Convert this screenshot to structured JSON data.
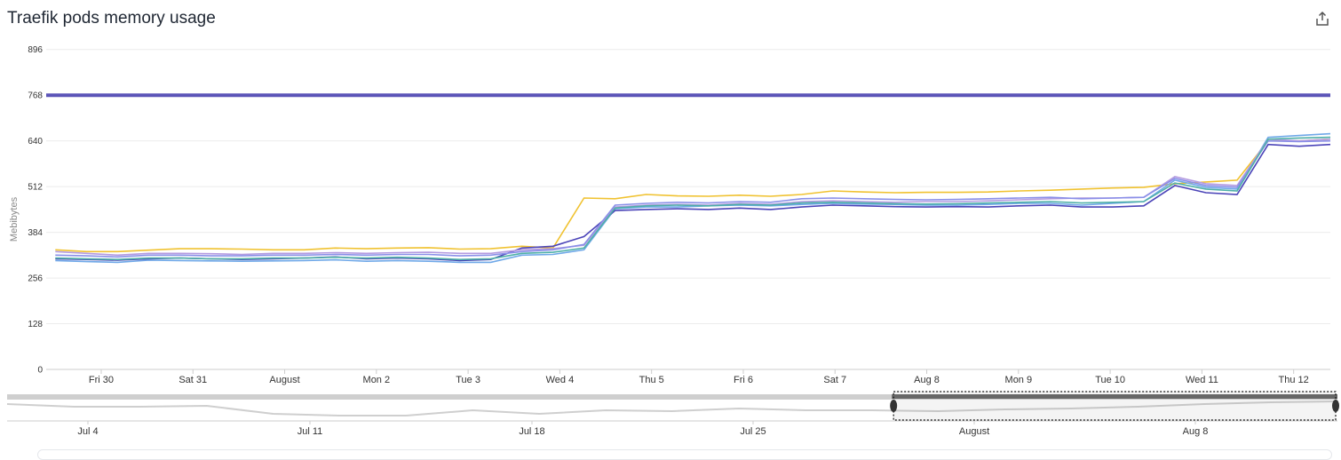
{
  "title": "Traefik pods memory usage",
  "export_icon": "share-export-icon",
  "chart_data": {
    "type": "line",
    "title": "Traefik pods memory usage",
    "ylabel": "Mebibytes",
    "ylim": [
      0,
      960
    ],
    "y_ticks": [
      0,
      128,
      256,
      384,
      512,
      640,
      768,
      896
    ],
    "x_ticks": [
      "Fri 30",
      "Sat 31",
      "August",
      "Mon 2",
      "Tue 3",
      "Wed 4",
      "Thu 5",
      "Fri 6",
      "Sat 7",
      "Aug 8",
      "Mon 9",
      "Tue 10",
      "Wed 11",
      "Thu 12"
    ],
    "x_tick_days": [
      0,
      1,
      2,
      3,
      4,
      5,
      6,
      7,
      8,
      9,
      10,
      11,
      12,
      13
    ],
    "x_range_days": [
      -0.6,
      13.4
    ],
    "limit_line": {
      "value": 768,
      "color": "#5b54b8"
    },
    "series": [
      {
        "color": "#f0c230",
        "values": [
          335,
          330,
          330,
          334,
          338,
          338,
          337,
          335,
          335,
          340,
          338,
          340,
          341,
          337,
          338,
          345,
          340,
          480,
          478,
          490,
          486,
          485,
          488,
          485,
          490,
          500,
          497,
          495,
          496,
          496,
          497,
          500,
          502,
          505,
          508,
          510,
          520,
          525,
          530,
          640,
          640,
          645
        ]
      },
      {
        "color": "#6fa8e8",
        "values": [
          305,
          302,
          300,
          306,
          305,
          304,
          303,
          304,
          305,
          307,
          303,
          305,
          303,
          300,
          300,
          320,
          322,
          335,
          450,
          455,
          455,
          458,
          460,
          458,
          462,
          465,
          463,
          462,
          460,
          460,
          462,
          465,
          465,
          460,
          465,
          470,
          530,
          510,
          505,
          650,
          655,
          660
        ]
      },
      {
        "color": "#4b44b8",
        "values": [
          310,
          308,
          306,
          310,
          312,
          310,
          308,
          310,
          312,
          315,
          310,
          312,
          310,
          305,
          308,
          340,
          345,
          372,
          445,
          448,
          450,
          448,
          452,
          448,
          455,
          460,
          458,
          456,
          455,
          456,
          455,
          458,
          460,
          455,
          455,
          458,
          515,
          495,
          490,
          630,
          625,
          630
        ]
      },
      {
        "color": "#b49be0",
        "values": [
          330,
          325,
          320,
          325,
          325,
          324,
          322,
          325,
          325,
          327,
          325,
          327,
          328,
          325,
          325,
          335,
          338,
          348,
          455,
          460,
          462,
          460,
          465,
          462,
          470,
          472,
          470,
          468,
          470,
          470,
          472,
          475,
          478,
          480,
          480,
          482,
          540,
          520,
          515,
          645,
          640,
          645
        ]
      },
      {
        "color": "#8a8fe8",
        "values": [
          320,
          318,
          315,
          320,
          320,
          318,
          318,
          320,
          320,
          322,
          320,
          322,
          322,
          318,
          320,
          330,
          335,
          350,
          460,
          465,
          468,
          466,
          470,
          468,
          478,
          480,
          478,
          476,
          475,
          476,
          478,
          480,
          482,
          478,
          480,
          482,
          535,
          515,
          510,
          640,
          638,
          640
        ]
      },
      {
        "color": "#4fb0a8",
        "values": [
          312,
          310,
          308,
          312,
          312,
          310,
          310,
          312,
          312,
          314,
          312,
          314,
          312,
          308,
          310,
          325,
          328,
          340,
          452,
          458,
          460,
          458,
          462,
          460,
          466,
          468,
          466,
          464,
          463,
          464,
          466,
          468,
          470,
          466,
          468,
          470,
          522,
          505,
          500,
          645,
          648,
          650
        ]
      }
    ]
  },
  "navigator": {
    "ticks": [
      "Jul 4",
      "Jul 11",
      "Jul 18",
      "Jul 25",
      "August",
      "Aug 8"
    ],
    "selection_start_fraction": 0.665,
    "selection_end_fraction": 1.0
  }
}
